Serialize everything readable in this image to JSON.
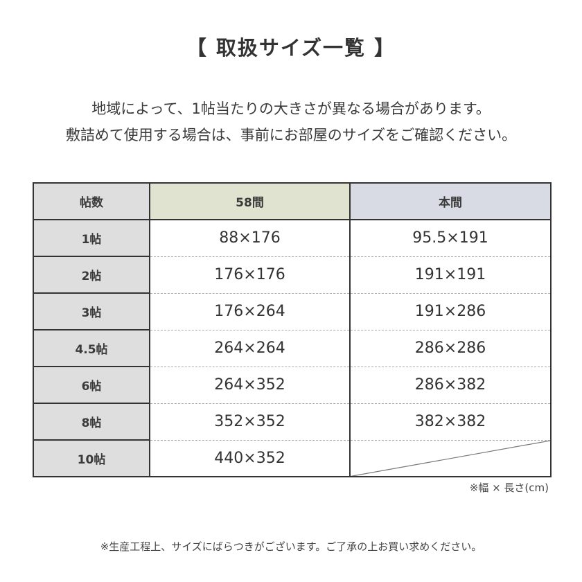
{
  "title": "【 取扱サイズ一覧 】",
  "intro": [
    "地域によって、1帖当たりの大きさが異なる場合があります。",
    "敷詰めて使用する場合は、事前にお部屋のサイズをご確認ください。"
  ],
  "table": {
    "headers": [
      "帖数",
      "58間",
      "本間"
    ],
    "header_colors": [
      "#dedede",
      "#e0e3d0",
      "#d9dbe4"
    ],
    "rows": [
      {
        "label": "1帖",
        "v58": "88×176",
        "hon": "95.5×191"
      },
      {
        "label": "2帖",
        "v58": "176×176",
        "hon": "191×191"
      },
      {
        "label": "3帖",
        "v58": "176×264",
        "hon": "191×286"
      },
      {
        "label": "4.5帖",
        "v58": "264×264",
        "hon": "286×286"
      },
      {
        "label": "6帖",
        "v58": "264×352",
        "hon": "286×382"
      },
      {
        "label": "8帖",
        "v58": "352×352",
        "hon": "382×382"
      },
      {
        "label": "10帖",
        "v58": "440×352",
        "hon": null
      }
    ]
  },
  "unit_note": "※幅 × 長さ(cm)",
  "footer_note": "※生産工程上、サイズにばらつきがございます。ご了承の上お買い求めください。"
}
